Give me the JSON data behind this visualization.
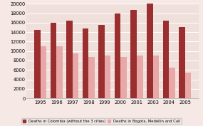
{
  "years": [
    "1995",
    "1996",
    "1997",
    "1998",
    "1999",
    "2000",
    "2001",
    "2003",
    "2004",
    "2005"
  ],
  "colombia_without": [
    14500,
    16000,
    16500,
    14800,
    15600,
    18000,
    18700,
    20000,
    16500,
    15000
  ],
  "bogota_medellin_cali": [
    11000,
    11000,
    9500,
    8700,
    9000,
    8800,
    9000,
    9000,
    6500,
    5500
  ],
  "color_colombia": "#9b2f2f",
  "color_cities": "#e8a8a8",
  "background_color": "#f5e8e5",
  "plot_bg_color": "#f0e0dc",
  "ylim": [
    0,
    20000
  ],
  "yticks": [
    0,
    2000,
    4000,
    6000,
    8000,
    10000,
    12000,
    14000,
    16000,
    18000,
    20000
  ],
  "legend_colombia": "Deaths in Colombia (without the 3 cities)",
  "legend_cities": "Deaths in Bogota, Medellin and Cali",
  "bar_width": 0.38,
  "figsize": [
    2.85,
    1.77
  ],
  "dpi": 100
}
